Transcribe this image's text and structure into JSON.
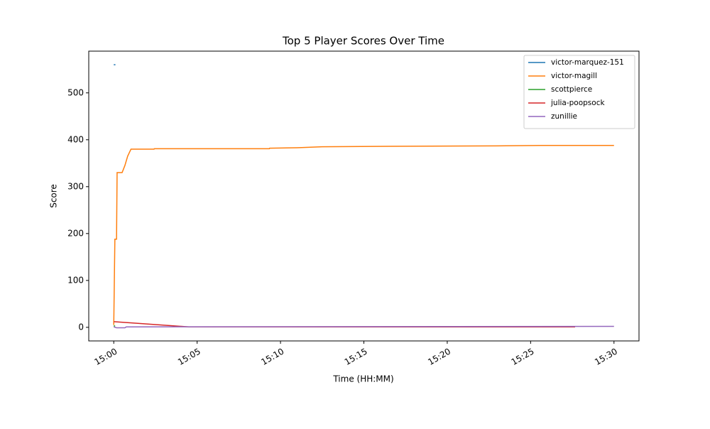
{
  "chart_data": {
    "type": "line",
    "title": "Top 5 Player Scores Over Time",
    "xlabel": "Time (HH:MM)",
    "ylabel": "Score",
    "xlim": [
      "14:58:30",
      "15:31:30"
    ],
    "xticks": [
      "15:00",
      "15:05",
      "15:10",
      "15:15",
      "15:20",
      "15:25",
      "15:30"
    ],
    "ylim": [
      -29,
      589
    ],
    "yticks": [
      0,
      100,
      200,
      300,
      400,
      500
    ],
    "legend": "upper right",
    "series": [
      {
        "name": "victor-marquez-151",
        "color": "#1f77b4",
        "x": [
          "15:00:00",
          "15:00:06"
        ],
        "values": [
          560,
          560
        ]
      },
      {
        "name": "victor-magill",
        "color": "#ff7f0e",
        "x": [
          "15:00:00",
          "15:00:04",
          "15:00:10",
          "15:00:12",
          "15:00:30",
          "15:00:40",
          "15:00:50",
          "15:01:02",
          "15:02:25",
          "15:02:26",
          "15:09:20",
          "15:09:21",
          "15:11:00",
          "15:12:30",
          "15:16:30",
          "15:23:00",
          "15:26:00",
          "15:30:00"
        ],
        "values": [
          5,
          188,
          188,
          330,
          330,
          345,
          365,
          380,
          380,
          381,
          381,
          382,
          383,
          385,
          386,
          387,
          388,
          388
        ]
      },
      {
        "name": "scottpierce",
        "color": "#2ca02c",
        "x": [
          "15:00:00",
          "15:00:05"
        ],
        "values": [
          3,
          3
        ]
      },
      {
        "name": "julia-poopsock",
        "color": "#d62728",
        "x": [
          "15:00:00",
          "15:04:30",
          "15:27:40"
        ],
        "values": [
          12,
          1,
          1
        ]
      },
      {
        "name": "zunillie",
        "color": "#9467bd",
        "x": [
          "15:00:00",
          "15:00:10",
          "15:00:40",
          "15:00:45",
          "15:30:00"
        ],
        "values": [
          1,
          -1,
          -1,
          1,
          2
        ]
      }
    ]
  }
}
